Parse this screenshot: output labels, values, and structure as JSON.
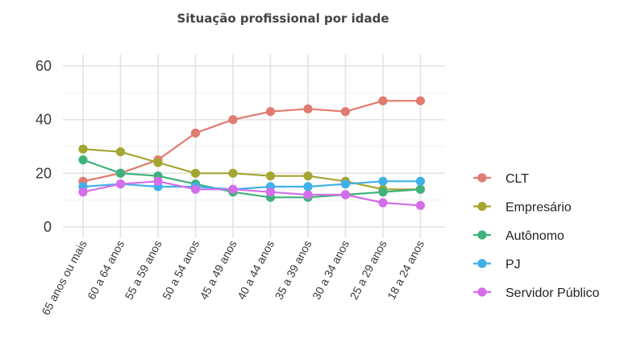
{
  "chart_data": {
    "type": "line",
    "title": "Situação profissional por idade",
    "xlabel": "",
    "ylabel": "",
    "ylim": [
      0,
      60
    ],
    "yticks": [
      0,
      20,
      40,
      60
    ],
    "grid": true,
    "legend_position": "right",
    "categories": [
      "65 anos ou mais",
      "60 a 64 anos",
      "55 a 59 anos",
      "50 a 54 anos",
      "45 a 49 anos",
      "40 a 44 anos",
      "35 a 39 anos",
      "30 a 34 anos",
      "25 a 29 anos",
      "18 a 24 anos"
    ],
    "series": [
      {
        "name": "CLT",
        "color": "#e07b6f",
        "values": [
          17,
          20,
          25,
          35,
          40,
          43,
          44,
          43,
          47,
          47
        ]
      },
      {
        "name": "Empresário",
        "color": "#a5a532",
        "values": [
          29,
          28,
          24,
          20,
          20,
          19,
          19,
          17,
          14,
          14
        ]
      },
      {
        "name": "Autônomo",
        "color": "#3fb27c",
        "values": [
          25,
          20,
          19,
          16,
          13,
          11,
          11,
          12,
          13,
          14
        ]
      },
      {
        "name": "PJ",
        "color": "#3fb1e8",
        "values": [
          15,
          16,
          15,
          15,
          14,
          15,
          15,
          16,
          17,
          17
        ]
      },
      {
        "name": "Servidor Público",
        "color": "#d36ee8",
        "values": [
          13,
          16,
          17,
          14,
          14,
          13,
          12,
          12,
          9,
          8
        ]
      }
    ]
  }
}
